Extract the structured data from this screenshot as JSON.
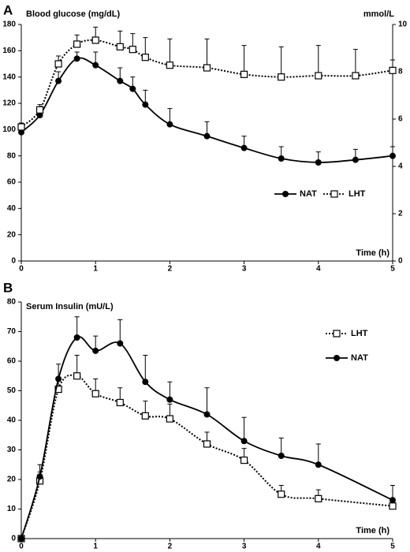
{
  "chart_data": [
    {
      "type": "line",
      "panel_label": "A",
      "ylabel": "Blood glucose (mg/dL)",
      "y2label": "mmol/L",
      "xlabel": "Time (h)",
      "x": [
        0,
        0.25,
        0.5,
        0.75,
        1,
        1.33,
        1.5,
        1.67,
        2,
        2.5,
        3,
        3.5,
        4,
        4.5,
        5
      ],
      "xlim": [
        0,
        5
      ],
      "xticks": [
        0,
        1,
        2,
        3,
        4,
        5
      ],
      "ylim": [
        0,
        180
      ],
      "yticks": [
        0,
        20,
        40,
        60,
        80,
        100,
        120,
        140,
        160,
        180
      ],
      "y2lim": [
        0,
        10
      ],
      "y2ticks": [
        0,
        2,
        4,
        6,
        8,
        10
      ],
      "grid": false,
      "legend": "lower-right",
      "legend_orientation": "horizontal",
      "series": [
        {
          "name": "NAT",
          "color": "#000000",
          "marker": "circle",
          "linestyle": "solid",
          "values": [
            98,
            111,
            137,
            154,
            149,
            137,
            131,
            119,
            104,
            95,
            86,
            78,
            75,
            77,
            80
          ],
          "errors": [
            3,
            4,
            7,
            5,
            10,
            10,
            9,
            11,
            12,
            11,
            9,
            9,
            8,
            8,
            7
          ]
        },
        {
          "name": "LHT",
          "color": "#000000",
          "marker": "square",
          "linestyle": "dotted",
          "values": [
            102,
            115,
            150,
            165,
            168,
            163,
            161,
            155,
            149,
            147,
            142,
            140,
            141,
            141,
            145
          ],
          "errors": [
            3,
            4,
            6,
            7,
            10,
            12,
            12,
            15,
            20,
            22,
            22,
            23,
            23,
            20,
            8
          ]
        }
      ]
    },
    {
      "type": "line",
      "panel_label": "B",
      "ylabel": "Serum Insulin (mU/L)",
      "xlabel": "Time (h)",
      "x": [
        0,
        0.25,
        0.5,
        0.75,
        1,
        1.33,
        1.67,
        2,
        2.5,
        3,
        3.5,
        4,
        5
      ],
      "xlim": [
        0,
        5
      ],
      "xticks": [
        0,
        1,
        2,
        3,
        4,
        5
      ],
      "ylim": [
        0,
        80
      ],
      "yticks": [
        0,
        10,
        20,
        30,
        40,
        50,
        60,
        70,
        80
      ],
      "grid": false,
      "legend": "upper-right",
      "legend_orientation": "vertical",
      "series": [
        {
          "name": "LHT",
          "color": "#000000",
          "marker": "square",
          "linestyle": "dotted",
          "values": [
            0,
            19.5,
            50.5,
            55,
            49,
            46,
            41.5,
            40.5,
            32,
            26.5,
            15,
            13.5,
            11
          ],
          "errors": [
            0,
            3,
            4,
            7,
            5,
            5,
            5,
            5,
            4,
            4,
            3,
            3,
            7
          ]
        },
        {
          "name": "NAT",
          "color": "#000000",
          "marker": "circle",
          "linestyle": "solid",
          "values": [
            0,
            21,
            54,
            68,
            63.5,
            66,
            53,
            47,
            42,
            33,
            28,
            25,
            13
          ],
          "errors": [
            0,
            4,
            5,
            7,
            5,
            8,
            9,
            6,
            9,
            8,
            6,
            7,
            5
          ]
        }
      ]
    }
  ]
}
